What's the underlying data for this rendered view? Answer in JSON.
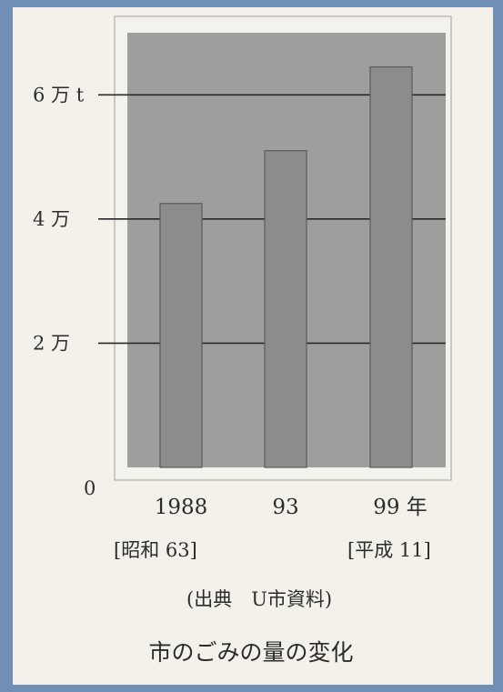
{
  "chart_data": {
    "type": "bar",
    "categories": [
      "1988",
      "93",
      "99 年"
    ],
    "values": [
      42500,
      51000,
      64500
    ],
    "era_labels": [
      "[昭和 63]",
      "",
      "[平成 11]"
    ],
    "y_ticks": [
      {
        "value": 0,
        "label": "0"
      },
      {
        "value": 20000,
        "label": "2 万"
      },
      {
        "value": 40000,
        "label": "4 万"
      },
      {
        "value": 60000,
        "label": "6 万 t"
      }
    ],
    "ylim": [
      0,
      70000
    ],
    "source": "(出典　U市資料)",
    "title": "市のごみの量の変化",
    "grid": true,
    "colors": {
      "plot_bg": "#a09d9d",
      "bar": "#8e8b8b",
      "frame": "#f4f2ec",
      "line": "#2a2a2a"
    }
  }
}
